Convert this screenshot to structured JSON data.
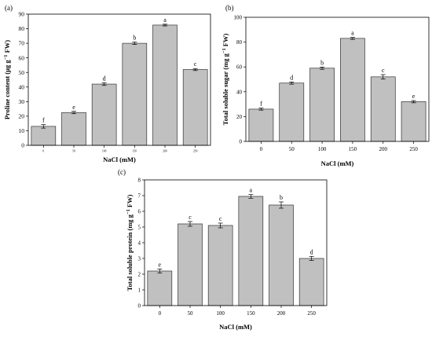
{
  "chart_data": [
    {
      "type": "bar",
      "panel_label": "(a)",
      "categories": [
        "0",
        "50",
        "100",
        "150",
        "200",
        "250"
      ],
      "values": [
        13,
        22.5,
        42,
        70,
        82.5,
        52
      ],
      "errors": [
        1.2,
        0.8,
        0.9,
        0.8,
        0.6,
        0.7
      ],
      "letters": [
        "f",
        "e",
        "d",
        "b",
        "a",
        "c"
      ],
      "xlabel": "NaCl (mM)",
      "ylabel": "Proline content (µg g",
      "ylabel_sup": "−1",
      "ylabel_tail": " FW)",
      "ylim": [
        0,
        90
      ],
      "yticks": [
        0,
        10,
        20,
        30,
        40,
        50,
        60,
        70,
        80,
        90
      ],
      "bar_color": "#c0c0c0",
      "grid": false
    },
    {
      "type": "bar",
      "panel_label": "(b)",
      "categories": [
        "0",
        "50",
        "100",
        "150",
        "200",
        "250"
      ],
      "values": [
        26,
        47,
        59,
        83,
        52,
        32
      ],
      "errors": [
        0.8,
        0.9,
        0.9,
        0.8,
        1.8,
        0.9
      ],
      "letters": [
        "f",
        "d",
        "b",
        "a",
        "c",
        "e"
      ],
      "xlabel": "NaCl (mM)",
      "ylabel": "Total soluble sugar (mg g",
      "ylabel_sup": "−1",
      "ylabel_tail": " FW)",
      "ylim": [
        0,
        100
      ],
      "yticks": [
        0,
        20,
        40,
        60,
        80,
        100
      ],
      "bar_color": "#c0c0c0",
      "grid": false
    },
    {
      "type": "bar",
      "panel_label": "(c)",
      "categories": [
        "0",
        "50",
        "100",
        "150",
        "200",
        "250"
      ],
      "values": [
        2.2,
        5.2,
        5.1,
        6.95,
        6.4,
        3.0
      ],
      "errors": [
        0.13,
        0.15,
        0.15,
        0.12,
        0.2,
        0.13
      ],
      "letters": [
        "e",
        "c",
        "c",
        "a",
        "b",
        "d"
      ],
      "xlabel": "NaCl (mM)",
      "ylabel": "Total soluble protein (mg g",
      "ylabel_sup": "−1",
      "ylabel_tail": " FW)",
      "ylim": [
        0,
        8
      ],
      "yticks": [
        0,
        1,
        2,
        3,
        4,
        5,
        6,
        7,
        8
      ],
      "bar_color": "#c0c0c0",
      "grid": false
    }
  ]
}
